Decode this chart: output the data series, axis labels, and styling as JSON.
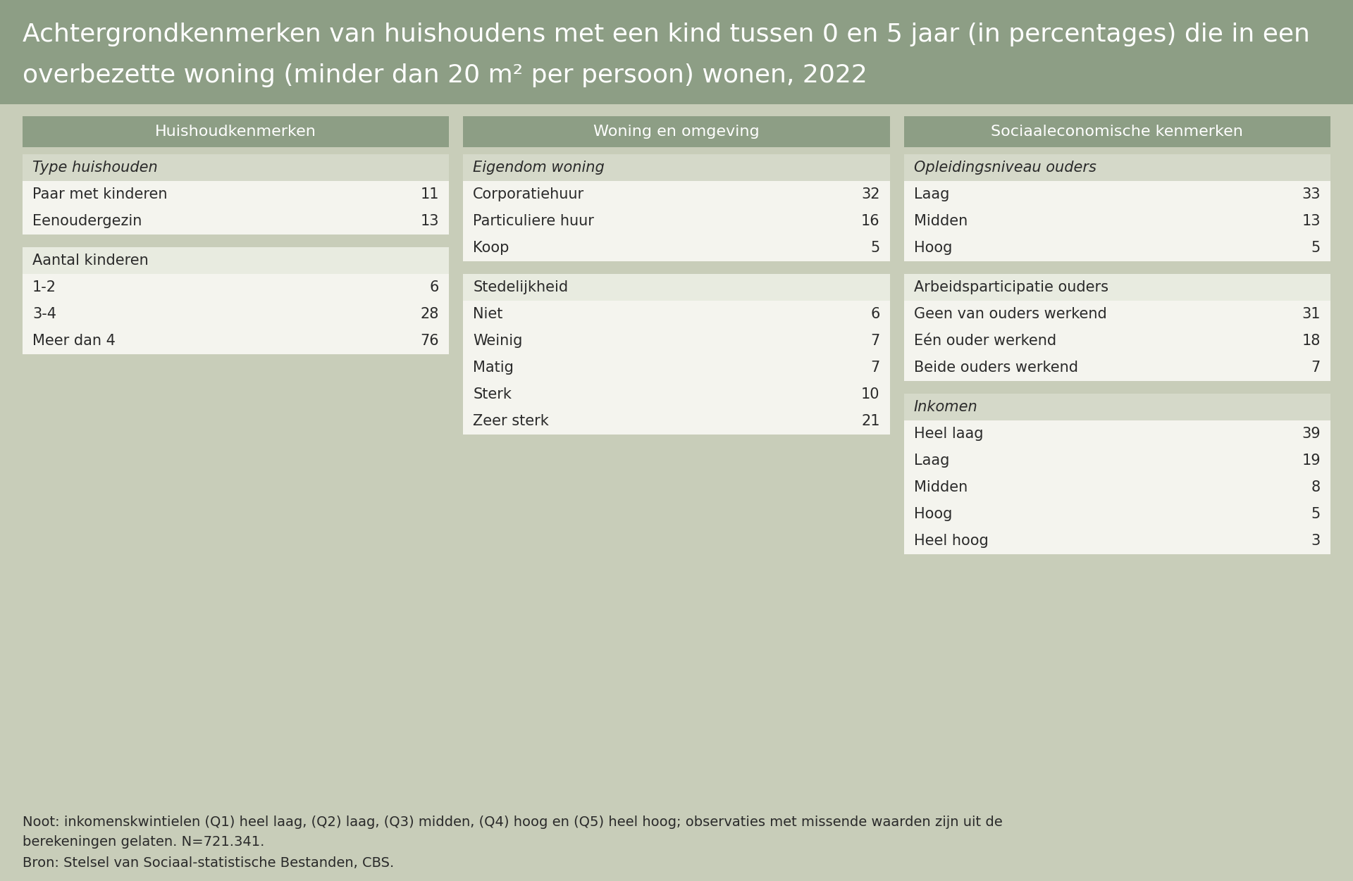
{
  "title_line1": "Achtergrondkenmerken van huishoudens met een kind tussen 0 en 5 jaar (in percentages) die in een",
  "title_line2": "overbezette woning (minder dan 20 m² per persoon) wonen, 2022",
  "bg_outer": "#c8cdb9",
  "bg_title": "#8d9e85",
  "bg_header": "#8d9e85",
  "bg_subheader_italic": "#d5d9c9",
  "bg_subheader_plain": "#e8ebe0",
  "bg_row": "#f4f4ee",
  "bg_white_box": "#f4f4ee",
  "title_text_color": "#ffffff",
  "header_text_color": "#ffffff",
  "body_text_color": "#2a2a2a",
  "border_color": "#b0b8a4",
  "note_text_line1": "Noot: inkomenskwintielen (Q1) heel laag, (Q2) laag, (Q3) midden, (Q4) hoog en (Q5) heel hoog; observaties met missende waarden zijn uit de",
  "note_text_line2": "berekeningen gelaten. N=721.341.",
  "source_text": "Bron: Stelsel van Sociaal-statistische Bestanden, CBS.",
  "columns": [
    {
      "header": "Huishoudkenmerken",
      "sections": [
        {
          "title": "Type huishouden",
          "italic": true,
          "rows": [
            {
              "label": "Paar met kinderen",
              "value": "11"
            },
            {
              "label": "Eenoudergezin",
              "value": "13"
            }
          ]
        },
        {
          "title": "Aantal kinderen",
          "italic": false,
          "rows": [
            {
              "label": "1-2",
              "value": "6"
            },
            {
              "label": "3-4",
              "value": "28"
            },
            {
              "label": "Meer dan 4",
              "value": "76"
            }
          ]
        }
      ]
    },
    {
      "header": "Woning en omgeving",
      "sections": [
        {
          "title": "Eigendom woning",
          "italic": true,
          "rows": [
            {
              "label": "Corporatiehuur",
              "value": "32"
            },
            {
              "label": "Particuliere huur",
              "value": "16"
            },
            {
              "label": "Koop",
              "value": "5"
            }
          ]
        },
        {
          "title": "Stedelijkheid",
          "italic": false,
          "rows": [
            {
              "label": "Niet",
              "value": "6"
            },
            {
              "label": "Weinig",
              "value": "7"
            },
            {
              "label": "Matig",
              "value": "7"
            },
            {
              "label": "Sterk",
              "value": "10"
            },
            {
              "label": "Zeer sterk",
              "value": "21"
            }
          ]
        }
      ]
    },
    {
      "header": "Sociaaleconomische kenmerken",
      "sections": [
        {
          "title": "Opleidingsniveau ouders",
          "italic": true,
          "rows": [
            {
              "label": "Laag",
              "value": "33"
            },
            {
              "label": "Midden",
              "value": "13"
            },
            {
              "label": "Hoog",
              "value": "5"
            }
          ]
        },
        {
          "title": "Arbeidsparticipatie ouders",
          "italic": false,
          "rows": [
            {
              "label": "Geen van ouders werkend",
              "value": "31"
            },
            {
              "label": "Eén ouder werkend",
              "value": "18"
            },
            {
              "label": "Beide ouders werkend",
              "value": "7"
            }
          ]
        },
        {
          "title": "Inkomen",
          "italic": true,
          "rows": [
            {
              "label": "Heel laag",
              "value": "39"
            },
            {
              "label": "Laag",
              "value": "19"
            },
            {
              "label": "Midden",
              "value": "8"
            },
            {
              "label": "Hoog",
              "value": "5"
            },
            {
              "label": "Heel hoog",
              "value": "3"
            }
          ]
        }
      ]
    }
  ]
}
